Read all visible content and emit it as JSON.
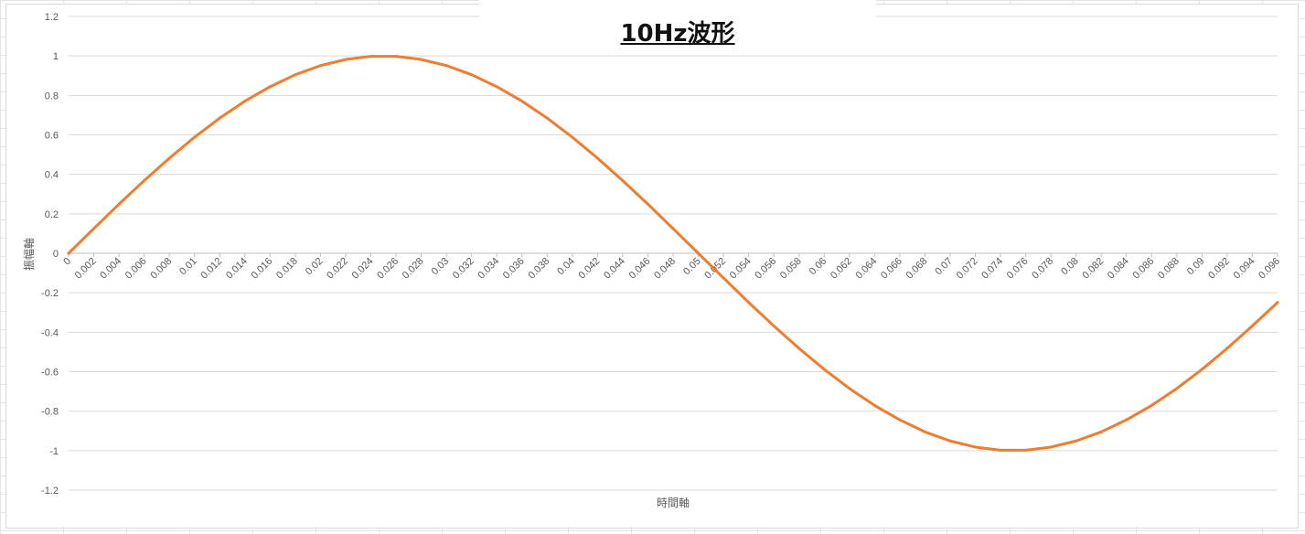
{
  "chart_data": {
    "type": "line",
    "title": "10Hz波形",
    "xlabel": "時間軸",
    "ylabel": "振幅軸",
    "ylim": [
      -1.2,
      1.2
    ],
    "yticks": [
      -1.2,
      -1,
      -0.8,
      -0.6,
      -0.4,
      -0.2,
      0,
      0.2,
      0.4,
      0.6,
      0.8,
      1,
      1.2
    ],
    "xtick_labels": [
      "0",
      "0.002",
      "0.004",
      "0.006",
      "0.008",
      "0.01",
      "0.012",
      "0.014",
      "0.016",
      "0.018",
      "0.02",
      "0.022",
      "0.024",
      "0.026",
      "0.028",
      "0.03",
      "0.032",
      "0.034",
      "0.036",
      "0.038",
      "0.04",
      "0.042",
      "0.044",
      "0.046",
      "0.048",
      "0.05",
      "0.052",
      "0.054",
      "0.056",
      "0.058",
      "0.06",
      "0.062",
      "0.064",
      "0.066",
      "0.068",
      "0.07",
      "0.072",
      "0.074",
      "0.076",
      "0.078",
      "0.08",
      "0.082",
      "0.084",
      "0.086",
      "0.088",
      "0.09",
      "0.092",
      "0.094",
      "0.096"
    ],
    "x": [
      0,
      0.002,
      0.004,
      0.006,
      0.008,
      0.01,
      0.012,
      0.014,
      0.016,
      0.018,
      0.02,
      0.022,
      0.024,
      0.026,
      0.028,
      0.03,
      0.032,
      0.034,
      0.036,
      0.038,
      0.04,
      0.042,
      0.044,
      0.046,
      0.048,
      0.05,
      0.052,
      0.054,
      0.056,
      0.058,
      0.06,
      0.062,
      0.064,
      0.066,
      0.068,
      0.07,
      0.072,
      0.074,
      0.076,
      0.078,
      0.08,
      0.082,
      0.084,
      0.086,
      0.088,
      0.09,
      0.092,
      0.094,
      0.096
    ],
    "series": [
      {
        "values": [
          0,
          0.125,
          0.249,
          0.368,
          0.482,
          0.588,
          0.685,
          0.771,
          0.844,
          0.905,
          0.951,
          0.982,
          0.998,
          0.998,
          0.982,
          0.951,
          0.905,
          0.844,
          0.771,
          0.685,
          0.588,
          0.482,
          0.368,
          0.249,
          0.125,
          0,
          -0.125,
          -0.249,
          -0.368,
          -0.482,
          -0.588,
          -0.685,
          -0.771,
          -0.844,
          -0.905,
          -0.951,
          -0.982,
          -0.998,
          -0.998,
          -0.982,
          -0.951,
          -0.905,
          -0.844,
          -0.771,
          -0.685,
          -0.588,
          -0.482,
          -0.368,
          -0.249
        ],
        "color": "#ED7D31"
      }
    ],
    "grid": true
  }
}
